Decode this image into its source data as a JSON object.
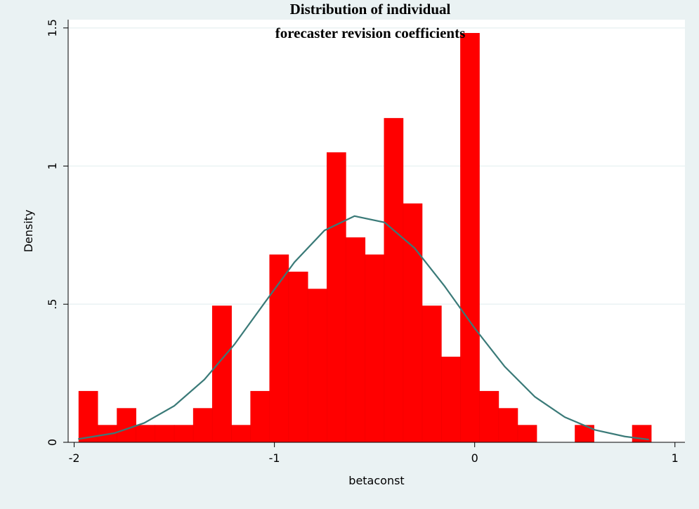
{
  "chart_data": {
    "type": "histogram",
    "title": [
      "Distribution of individual",
      "forecaster revision coefficients"
    ],
    "x_label": "betaconst",
    "y_label": "Density",
    "bins": [
      -1.977,
      -1.882,
      -1.786,
      -1.691,
      -1.596,
      -1.5,
      -1.405,
      -1.31,
      -1.214,
      -1.119,
      -1.024,
      -0.929,
      -0.833,
      -0.738,
      -0.643,
      -0.547,
      -0.452,
      -0.357,
      -0.262,
      -0.166,
      -0.071,
      0.024,
      0.12,
      0.215,
      0.31,
      0.406,
      0.501,
      0.596,
      0.691,
      0.787,
      0.882
    ],
    "values": [
      0.185,
      0.062,
      0.123,
      0.062,
      0.062,
      0.062,
      0.123,
      0.494,
      0.062,
      0.185,
      0.679,
      0.617,
      0.555,
      1.049,
      0.741,
      0.679,
      1.173,
      0.864,
      0.494,
      0.309,
      1.481,
      0.185,
      0.123,
      0.062,
      0,
      0,
      0.062,
      0,
      0,
      0.062
    ],
    "color": "#ff0000",
    "overlay": {
      "type": "line",
      "color": "#3a7a78",
      "x": [
        -1.98,
        -1.8,
        -1.65,
        -1.5,
        -1.35,
        -1.2,
        -1.05,
        -0.9,
        -0.75,
        -0.6,
        -0.45,
        -0.3,
        -0.15,
        0,
        0.15,
        0.3,
        0.45,
        0.6,
        0.75,
        0.87
      ],
      "values": [
        0.012,
        0.033,
        0.07,
        0.132,
        0.227,
        0.354,
        0.504,
        0.652,
        0.767,
        0.819,
        0.796,
        0.703,
        0.565,
        0.413,
        0.274,
        0.165,
        0.091,
        0.045,
        0.021,
        0.01
      ]
    },
    "xlim": [
      -2.03,
      1.05
    ],
    "ylim": [
      0,
      1.53
    ],
    "xticks": [
      -2,
      -1,
      0,
      1
    ],
    "yticks": [
      0,
      {
        "value": 0.5,
        "label": ".5"
      },
      1.5,
      1
    ],
    "grid": true
  }
}
